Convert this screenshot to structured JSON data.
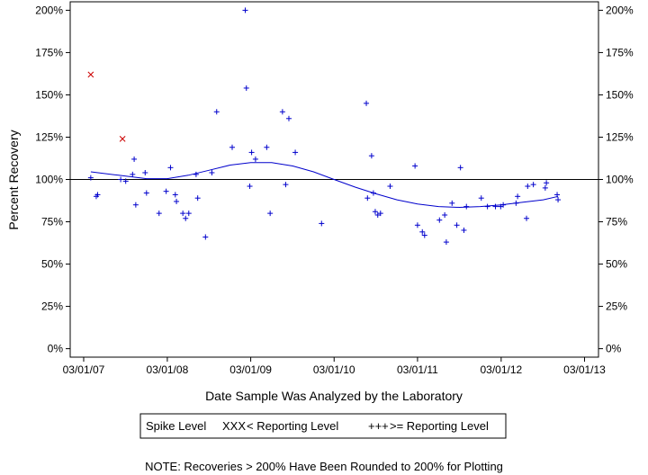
{
  "chart_data": {
    "type": "scatter",
    "ylabel": "Percent Recovery",
    "xlabel": "Date Sample Was Analyzed by the Laboratory",
    "note": "NOTE: Recoveries > 200% Have Been Rounded to 200% for Plotting",
    "x_ticks": [
      "03/01/07",
      "03/01/08",
      "03/01/09",
      "03/01/10",
      "03/01/11",
      "03/01/12",
      "03/01/13"
    ],
    "y_ticks": [
      "0%",
      "25%",
      "50%",
      "75%",
      "100%",
      "125%",
      "150%",
      "175%",
      "200%"
    ],
    "y_tick_values": [
      0,
      25,
      50,
      75,
      100,
      125,
      150,
      175,
      200
    ],
    "xlim": [
      "2007-01-01",
      "2013-05-01"
    ],
    "ylim": [
      -5,
      205
    ],
    "reference_line": 100,
    "legend": {
      "title": "Spike Level",
      "marker_below": "XXX",
      "marker_at_or_above": "+++",
      "label_below": "< Reporting Level",
      "label_at_or_above": ">= Reporting Level"
    },
    "colors": {
      "below": "#cc0000",
      "at_or_above": "#0000cc",
      "trend": "#0000cc",
      "axes": "#000000"
    },
    "series": [
      {
        "key": "below",
        "marker": "x",
        "points": [
          {
            "x": "2007-04-01",
            "y": 162
          },
          {
            "x": "2007-08-18",
            "y": 124
          }
        ]
      },
      {
        "key": "at_or_above",
        "marker": "+",
        "points": [
          {
            "x": "2007-04-01",
            "y": 101
          },
          {
            "x": "2007-04-25",
            "y": 90
          },
          {
            "x": "2007-05-01",
            "y": 91
          },
          {
            "x": "2007-08-10",
            "y": 100
          },
          {
            "x": "2007-09-01",
            "y": 99
          },
          {
            "x": "2007-10-01",
            "y": 103
          },
          {
            "x": "2007-10-08",
            "y": 112
          },
          {
            "x": "2007-10-15",
            "y": 85
          },
          {
            "x": "2007-11-25",
            "y": 104
          },
          {
            "x": "2007-12-01",
            "y": 92
          },
          {
            "x": "2008-01-25",
            "y": 80
          },
          {
            "x": "2008-02-25",
            "y": 93
          },
          {
            "x": "2008-03-15",
            "y": 107
          },
          {
            "x": "2008-04-05",
            "y": 91
          },
          {
            "x": "2008-04-10",
            "y": 87
          },
          {
            "x": "2008-05-08",
            "y": 80
          },
          {
            "x": "2008-05-20",
            "y": 77
          },
          {
            "x": "2008-06-03",
            "y": 80
          },
          {
            "x": "2008-07-05",
            "y": 103
          },
          {
            "x": "2008-07-12",
            "y": 89
          },
          {
            "x": "2008-08-15",
            "y": 66
          },
          {
            "x": "2008-09-12",
            "y": 104
          },
          {
            "x": "2008-10-03",
            "y": 140
          },
          {
            "x": "2008-12-10",
            "y": 119
          },
          {
            "x": "2009-02-05",
            "y": 200
          },
          {
            "x": "2009-02-10",
            "y": 154
          },
          {
            "x": "2009-02-25",
            "y": 96
          },
          {
            "x": "2009-03-05",
            "y": 116
          },
          {
            "x": "2009-03-22",
            "y": 112
          },
          {
            "x": "2009-05-10",
            "y": 119
          },
          {
            "x": "2009-05-25",
            "y": 80
          },
          {
            "x": "2009-07-18",
            "y": 140
          },
          {
            "x": "2009-08-01",
            "y": 97
          },
          {
            "x": "2009-08-15",
            "y": 136
          },
          {
            "x": "2009-09-12",
            "y": 116
          },
          {
            "x": "2010-01-05",
            "y": 74
          },
          {
            "x": "2010-07-20",
            "y": 145
          },
          {
            "x": "2010-07-25",
            "y": 89
          },
          {
            "x": "2010-08-12",
            "y": 114
          },
          {
            "x": "2010-08-20",
            "y": 92
          },
          {
            "x": "2010-08-28",
            "y": 81
          },
          {
            "x": "2010-09-08",
            "y": 79
          },
          {
            "x": "2010-09-20",
            "y": 80
          },
          {
            "x": "2010-11-01",
            "y": 96
          },
          {
            "x": "2011-02-18",
            "y": 108
          },
          {
            "x": "2011-03-01",
            "y": 73
          },
          {
            "x": "2011-03-22",
            "y": 69
          },
          {
            "x": "2011-04-01",
            "y": 67
          },
          {
            "x": "2011-06-05",
            "y": 76
          },
          {
            "x": "2011-06-28",
            "y": 79
          },
          {
            "x": "2011-07-05",
            "y": 63
          },
          {
            "x": "2011-07-30",
            "y": 86
          },
          {
            "x": "2011-08-20",
            "y": 73
          },
          {
            "x": "2011-09-05",
            "y": 107
          },
          {
            "x": "2011-09-20",
            "y": 70
          },
          {
            "x": "2011-10-01",
            "y": 84
          },
          {
            "x": "2011-12-05",
            "y": 89
          },
          {
            "x": "2012-01-01",
            "y": 84
          },
          {
            "x": "2012-02-05",
            "y": 84
          },
          {
            "x": "2012-02-28",
            "y": 84
          },
          {
            "x": "2012-03-10",
            "y": 85
          },
          {
            "x": "2012-05-05",
            "y": 86
          },
          {
            "x": "2012-05-12",
            "y": 90
          },
          {
            "x": "2012-06-20",
            "y": 77
          },
          {
            "x": "2012-06-25",
            "y": 96
          },
          {
            "x": "2012-07-20",
            "y": 97
          },
          {
            "x": "2012-09-10",
            "y": 95
          },
          {
            "x": "2012-09-15",
            "y": 98
          },
          {
            "x": "2012-11-01",
            "y": 91
          },
          {
            "x": "2012-11-05",
            "y": 88
          }
        ]
      }
    ],
    "trend": {
      "key": "trend",
      "points": [
        {
          "x": "2007-04-01",
          "y": 104.5
        },
        {
          "x": "2007-08-01",
          "y": 102.5
        },
        {
          "x": "2007-12-01",
          "y": 100.5
        },
        {
          "x": "2008-03-01",
          "y": 100.5
        },
        {
          "x": "2008-06-01",
          "y": 102.5
        },
        {
          "x": "2008-09-01",
          "y": 105.5
        },
        {
          "x": "2008-12-01",
          "y": 108.5
        },
        {
          "x": "2009-03-01",
          "y": 110
        },
        {
          "x": "2009-06-01",
          "y": 110
        },
        {
          "x": "2009-09-01",
          "y": 108
        },
        {
          "x": "2009-12-01",
          "y": 104.5
        },
        {
          "x": "2010-03-01",
          "y": 100
        },
        {
          "x": "2010-06-01",
          "y": 95.5
        },
        {
          "x": "2010-09-01",
          "y": 91.5
        },
        {
          "x": "2010-12-01",
          "y": 88
        },
        {
          "x": "2011-03-01",
          "y": 85.5
        },
        {
          "x": "2011-06-01",
          "y": 84
        },
        {
          "x": "2011-09-01",
          "y": 83.5
        },
        {
          "x": "2011-12-01",
          "y": 84
        },
        {
          "x": "2012-03-01",
          "y": 85
        },
        {
          "x": "2012-06-01",
          "y": 86.5
        },
        {
          "x": "2012-09-01",
          "y": 88
        },
        {
          "x": "2012-11-05",
          "y": 90
        }
      ]
    }
  }
}
